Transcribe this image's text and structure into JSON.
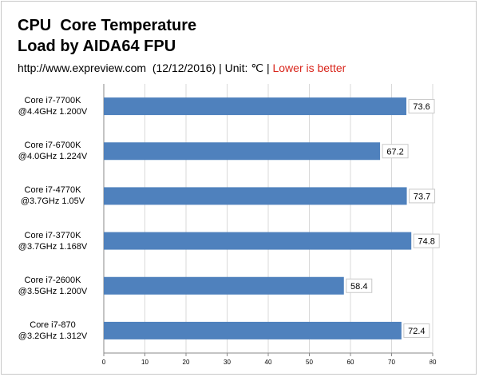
{
  "chart_data": {
    "type": "bar",
    "orientation": "horizontal",
    "title_line1": "CPU  Core Temperature",
    "title_line2": "Load by AIDA64 FPU",
    "subtitle": "http://www.expreview.com  (12/12/2016) | Unit: ℃ | ",
    "subtitle_highlight": "Lower is better",
    "categories": [
      [
        "Core i7-7700K",
        "@4.4GHz 1.200V"
      ],
      [
        "Core i7-6700K",
        "@4.0GHz 1.224V"
      ],
      [
        "Core i7-4770K",
        "@3.7GHz 1.05V"
      ],
      [
        "Core i7-3770K",
        "@3.7GHz 1.168V"
      ],
      [
        "Core i7-2600K",
        "@3.5GHz 1.200V"
      ],
      [
        "Core i7-870",
        "@3.2GHz 1.312V"
      ]
    ],
    "values": [
      73.6,
      67.2,
      73.7,
      74.8,
      58.4,
      72.4
    ],
    "value_labels": [
      "73.6",
      "67.2",
      "73.7",
      "74.8",
      "58.4",
      "72.4"
    ],
    "xlim": [
      0,
      80
    ],
    "xticks": [
      "0",
      "10",
      "20",
      "30",
      "40",
      "50",
      "60",
      "70",
      "80"
    ],
    "grid": true,
    "bar_color": "#4f81bd"
  }
}
